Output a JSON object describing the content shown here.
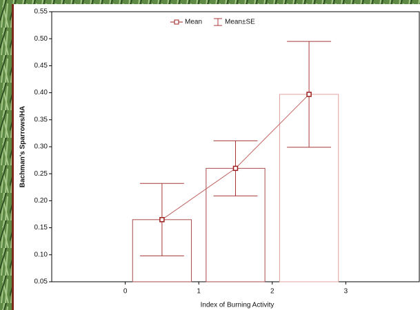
{
  "chart_data": {
    "type": "bar",
    "y_label": "Bachman's Sparrows/HA",
    "x_label": "Index of Burning Activity",
    "x": [
      0.5,
      1.5,
      2.5
    ],
    "series": [
      {
        "name": "Mean",
        "color": "#9b1c1c",
        "values": [
          0.165,
          0.26,
          0.397
        ]
      },
      {
        "name": "Mean±SE",
        "color": "#a83838",
        "errors": [
          0.067,
          0.051,
          0.098
        ]
      }
    ],
    "xlim": [
      -1,
      4
    ],
    "xticks": [
      0,
      1,
      2,
      3
    ],
    "ylim": [
      0.05,
      0.55
    ],
    "yticks": [
      0.05,
      {
        "value": 0.1,
        "label": "0.10"
      },
      0.15,
      {
        "value": 0.2,
        "label": "0.20"
      },
      0.25,
      {
        "value": 0.3,
        "label": "0.30"
      },
      0.35,
      {
        "value": 0.4,
        "label": "0.40"
      },
      0.45,
      {
        "value": 0.5,
        "label": "0.50"
      },
      0.55
    ],
    "grid": false
  }
}
